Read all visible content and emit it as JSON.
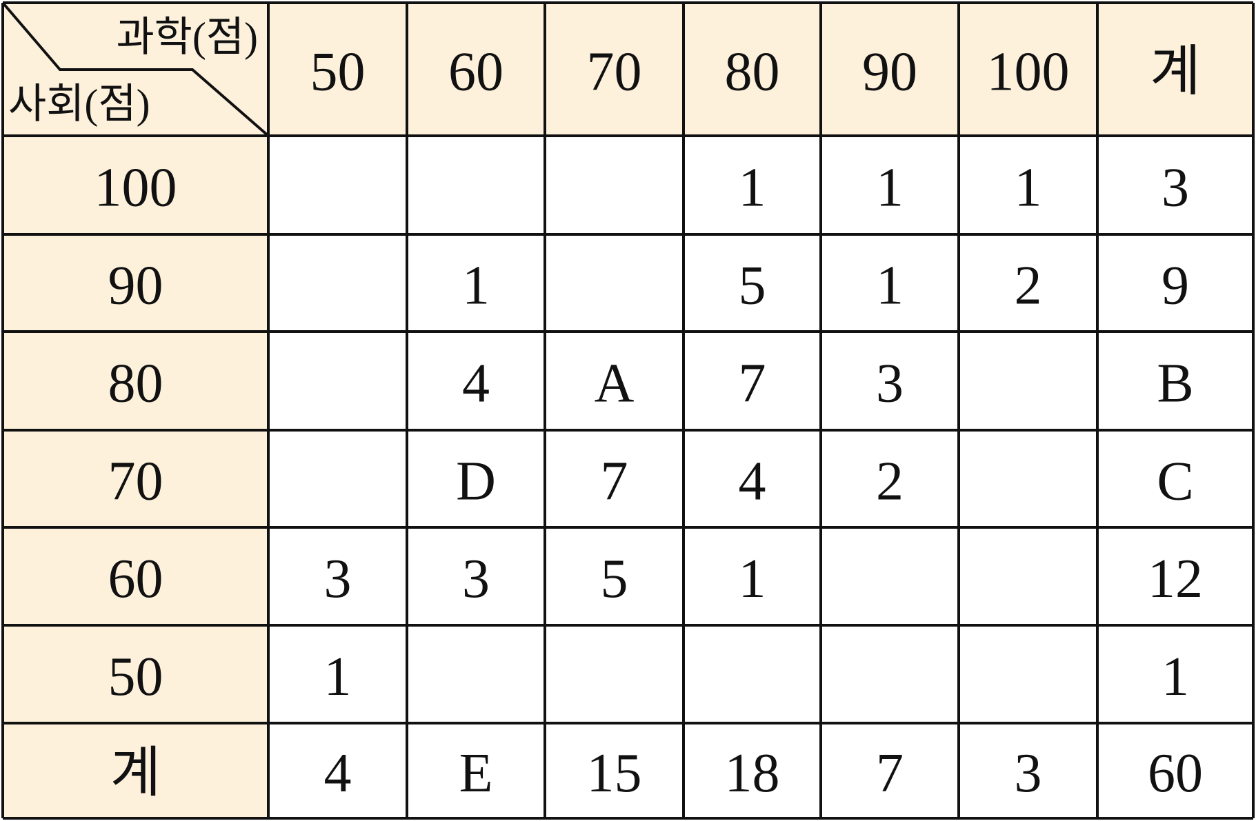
{
  "table": {
    "corner": {
      "top": "과학(점)",
      "bottom": "사회(점)"
    },
    "header": [
      "50",
      "60",
      "70",
      "80",
      "90",
      "100",
      "계"
    ],
    "rows": [
      {
        "label": "100",
        "cells": [
          null,
          null,
          null,
          1,
          1,
          1,
          3
        ]
      },
      {
        "label": "90",
        "cells": [
          null,
          1,
          null,
          5,
          1,
          2,
          9
        ]
      },
      {
        "label": "80",
        "cells": [
          null,
          4,
          "A",
          7,
          3,
          null,
          "B"
        ]
      },
      {
        "label": "70",
        "cells": [
          null,
          "D",
          7,
          4,
          2,
          null,
          "C"
        ]
      },
      {
        "label": "60",
        "cells": [
          3,
          3,
          5,
          1,
          null,
          null,
          12
        ]
      },
      {
        "label": "50",
        "cells": [
          1,
          null,
          null,
          null,
          null,
          null,
          1
        ]
      },
      {
        "label": "계",
        "cells": [
          4,
          "E",
          15,
          18,
          7,
          3,
          60
        ]
      }
    ]
  }
}
